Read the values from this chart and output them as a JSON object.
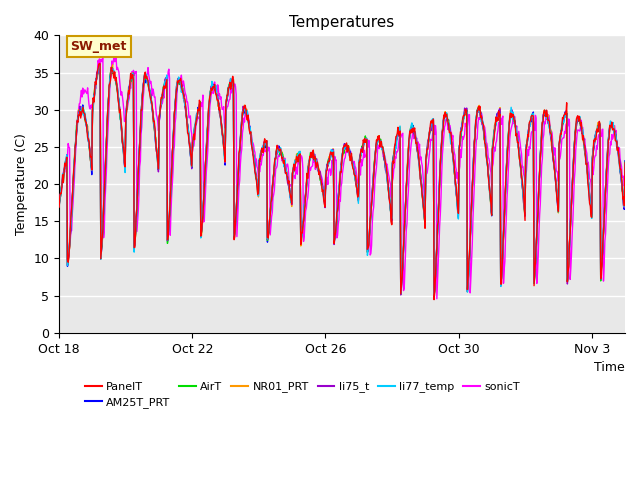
{
  "title": "Temperatures",
  "xlabel": "Time",
  "ylabel": "Temperature (C)",
  "ylim": [
    0,
    40
  ],
  "background_color": "#e8e8e8",
  "annotation_text": "SW_met",
  "annotation_facecolor": "#ffffcc",
  "annotation_edgecolor": "#cc9900",
  "series": {
    "PanelT": {
      "color": "#ff0000",
      "lw": 1.0
    },
    "AM25T_PRT": {
      "color": "#0000ff",
      "lw": 1.0
    },
    "AirT": {
      "color": "#00dd00",
      "lw": 1.0
    },
    "NR01_PRT": {
      "color": "#ff9900",
      "lw": 1.0
    },
    "li75_t": {
      "color": "#9900cc",
      "lw": 1.0
    },
    "li77_temp": {
      "color": "#00ccff",
      "lw": 1.0
    },
    "sonicT": {
      "color": "#ff00ff",
      "lw": 1.0
    }
  },
  "xtick_positions": [
    0,
    4,
    8,
    12,
    16
  ],
  "xtick_labels": [
    "Oct 18",
    "Oct 22",
    "Oct 26",
    "Oct 30",
    "Nov 3"
  ],
  "ytick_positions": [
    0,
    5,
    10,
    15,
    20,
    25,
    30,
    35,
    40
  ],
  "legend_fontsize": 8,
  "title_fontsize": 11
}
